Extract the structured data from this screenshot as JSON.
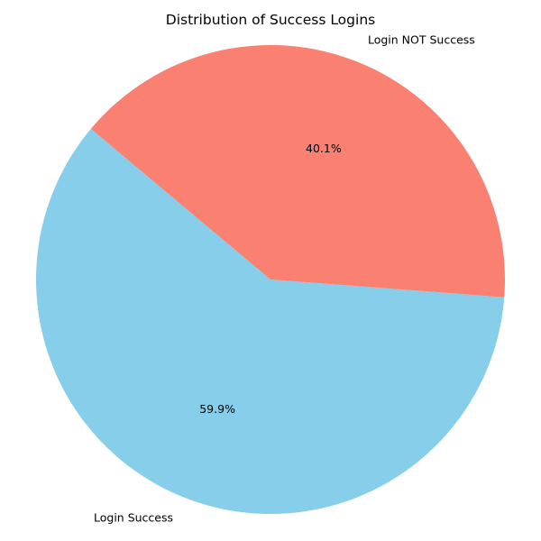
{
  "chart_data": {
    "type": "pie",
    "title": "Distribution of Success Logins",
    "categories": [
      "Login Success",
      "Login NOT Success"
    ],
    "values": [
      59.9,
      40.1
    ],
    "value_labels": [
      "59.9%",
      "40.1%"
    ],
    "colors": [
      "#87CEEB",
      "#FA8072"
    ],
    "start_angle_deg": 140,
    "direction": "counterclockwise",
    "legend": "none"
  }
}
